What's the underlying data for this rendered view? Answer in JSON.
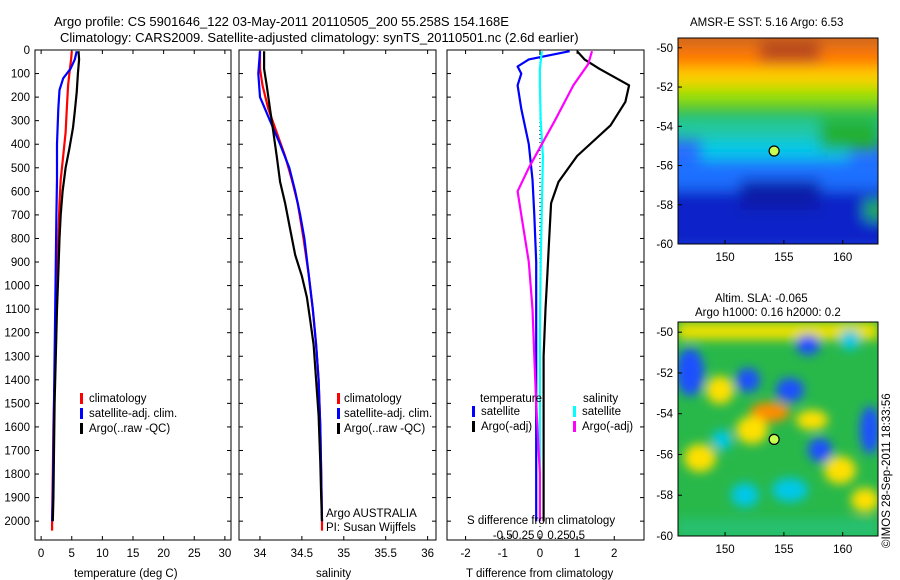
{
  "title_line1": "Argo profile: CS 5901646_122 03-May-2011 20110505_200 55.258S 154.168E",
  "title_line2": "Climatology: CARS2009. Satellite-adjusted climatology: synTS_20110501.nc (2.6d earlier)",
  "credit": "©IMOS 28-Sep-2011 18:33:56",
  "colors": {
    "climatology": "#ff0000",
    "satellite": "#0000ff",
    "argo": "#000000",
    "satellite_salinity": "#00ffff",
    "argo_salinity_diff": "#ff00ff",
    "zero_line": "#000000"
  },
  "chart_data": [
    {
      "type": "line",
      "id": "temperature_profile",
      "xlabel": "temperature (deg C)",
      "xlim": [
        -1,
        31
      ],
      "xticks": [
        0,
        5,
        10,
        15,
        20,
        25,
        30
      ],
      "ylim": [
        2080,
        0
      ],
      "yticks": [
        0,
        100,
        200,
        300,
        400,
        500,
        600,
        700,
        800,
        900,
        1000,
        1100,
        1200,
        1300,
        1400,
        1500,
        1600,
        1700,
        1800,
        1900,
        2000
      ],
      "legend": [
        "climatology",
        "satellite-adj. clim.",
        "Argo(..raw -QC)"
      ],
      "series": [
        {
          "name": "climatology",
          "color": "#ff0000",
          "points": [
            [
              5.0,
              5
            ],
            [
              4.9,
              40
            ],
            [
              4.7,
              80
            ],
            [
              4.4,
              150
            ],
            [
              4.2,
              250
            ],
            [
              4.0,
              350
            ],
            [
              3.6,
              450
            ],
            [
              3.2,
              550
            ],
            [
              3.0,
              650
            ],
            [
              2.8,
              800
            ],
            [
              2.6,
              1000
            ],
            [
              2.4,
              1200
            ],
            [
              2.2,
              1400
            ],
            [
              2.0,
              1600
            ],
            [
              1.9,
              1800
            ],
            [
              1.8,
              2000
            ],
            [
              1.8,
              2040
            ]
          ]
        },
        {
          "name": "satellite-adj. clim.",
          "color": "#0000ff",
          "points": [
            [
              5.8,
              5
            ],
            [
              5.5,
              40
            ],
            [
              4.8,
              80
            ],
            [
              3.6,
              120
            ],
            [
              3.0,
              170
            ],
            [
              2.8,
              250
            ],
            [
              2.6,
              400
            ],
            [
              2.6,
              550
            ],
            [
              2.5,
              700
            ],
            [
              2.4,
              900
            ],
            [
              2.3,
              1100
            ],
            [
              2.2,
              1300
            ],
            [
              2.1,
              1500
            ],
            [
              2.0,
              1700
            ],
            [
              1.9,
              1900
            ],
            [
              1.8,
              2000
            ]
          ]
        },
        {
          "name": "Argo(..raw -QC)",
          "color": "#000000",
          "points": [
            [
              6.1,
              5
            ],
            [
              6.2,
              40
            ],
            [
              6.0,
              100
            ],
            [
              5.8,
              180
            ],
            [
              5.5,
              260
            ],
            [
              5.2,
              330
            ],
            [
              4.6,
              420
            ],
            [
              4.0,
              500
            ],
            [
              3.5,
              600
            ],
            [
              3.2,
              700
            ],
            [
              3.0,
              800
            ],
            [
              2.8,
              950
            ],
            [
              2.6,
              1100
            ],
            [
              2.4,
              1300
            ],
            [
              2.2,
              1500
            ],
            [
              2.1,
              1700
            ],
            [
              2.0,
              1900
            ],
            [
              1.9,
              2000
            ]
          ]
        }
      ]
    },
    {
      "type": "line",
      "id": "salinity_profile",
      "xlabel": "salinity",
      "xlim": [
        33.75,
        36.1
      ],
      "xticks": [
        34,
        34.5,
        35,
        35.5,
        36
      ],
      "ylim": [
        2080,
        0
      ],
      "legend": [
        "climatology",
        "satellite-adj. clim.",
        "Argo(..raw -QC)"
      ],
      "annotations": [
        "Argo AUSTRALIA",
        "PI: Susan Wijffels"
      ],
      "series": [
        {
          "name": "climatology",
          "color": "#ff0000",
          "points": [
            [
              34.0,
              5
            ],
            [
              34.0,
              80
            ],
            [
              34.03,
              150
            ],
            [
              34.1,
              250
            ],
            [
              34.2,
              350
            ],
            [
              34.3,
              450
            ],
            [
              34.38,
              550
            ],
            [
              34.45,
              650
            ],
            [
              34.52,
              800
            ],
            [
              34.58,
              950
            ],
            [
              34.63,
              1100
            ],
            [
              34.67,
              1250
            ],
            [
              34.7,
              1400
            ],
            [
              34.72,
              1600
            ],
            [
              34.73,
              1800
            ],
            [
              34.74,
              2000
            ],
            [
              34.74,
              2040
            ]
          ]
        },
        {
          "name": "satellite-adj. clim.",
          "color": "#0000ff",
          "points": [
            [
              34.0,
              5
            ],
            [
              33.98,
              100
            ],
            [
              34.0,
              200
            ],
            [
              34.12,
              300
            ],
            [
              34.24,
              400
            ],
            [
              34.35,
              500
            ],
            [
              34.42,
              600
            ],
            [
              34.48,
              700
            ],
            [
              34.53,
              800
            ],
            [
              34.58,
              950
            ],
            [
              34.63,
              1100
            ],
            [
              34.67,
              1250
            ],
            [
              34.7,
              1400
            ],
            [
              34.72,
              1600
            ],
            [
              34.73,
              1800
            ],
            [
              34.74,
              2000
            ]
          ]
        },
        {
          "name": "Argo(..raw -QC)",
          "color": "#000000",
          "points": [
            [
              34.05,
              5
            ],
            [
              34.05,
              80
            ],
            [
              34.08,
              150
            ],
            [
              34.12,
              250
            ],
            [
              34.16,
              350
            ],
            [
              34.2,
              450
            ],
            [
              34.24,
              560
            ],
            [
              34.3,
              650
            ],
            [
              34.36,
              760
            ],
            [
              34.42,
              870
            ],
            [
              34.5,
              960
            ],
            [
              34.56,
              1050
            ],
            [
              34.6,
              1150
            ],
            [
              34.64,
              1250
            ],
            [
              34.67,
              1400
            ],
            [
              34.7,
              1550
            ],
            [
              34.72,
              1750
            ],
            [
              34.73,
              1900
            ],
            [
              34.74,
              2000
            ]
          ]
        }
      ]
    },
    {
      "type": "line",
      "id": "difference_profile",
      "xlabel": "T difference from climatology",
      "xlabel_top": "S difference from climatology",
      "xlim": [
        -2.5,
        2.8
      ],
      "xticks": [
        -2,
        -1,
        0,
        1,
        2
      ],
      "top_ticks": [
        "-0.5",
        "-0.25",
        "0",
        "0.25",
        "0.5"
      ],
      "ylim": [
        2080,
        0
      ],
      "legend_left_title": "temperature",
      "legend_right_title": "salinity",
      "legend_left": [
        "satellite",
        "Argo(-adj)"
      ],
      "legend_right": [
        "satellite",
        "Argo(-adj)"
      ],
      "series": [
        {
          "name": "satellite",
          "quantity": "temperature",
          "color": "#0000ff",
          "points": [
            [
              0.8,
              5
            ],
            [
              -0.3,
              40
            ],
            [
              -0.6,
              70
            ],
            [
              -0.5,
              100
            ],
            [
              -0.6,
              150
            ],
            [
              -0.5,
              250
            ],
            [
              -0.3,
              400
            ],
            [
              -0.2,
              550
            ],
            [
              -0.15,
              700
            ],
            [
              -0.1,
              900
            ],
            [
              -0.1,
              1200
            ],
            [
              -0.1,
              1500
            ],
            [
              -0.1,
              1800
            ],
            [
              -0.1,
              2000
            ]
          ]
        },
        {
          "name": "Argo(-adj)",
          "quantity": "temperature",
          "color": "#000000",
          "points": [
            [
              1.0,
              5
            ],
            [
              1.2,
              40
            ],
            [
              1.6,
              80
            ],
            [
              2.4,
              150
            ],
            [
              2.3,
              220
            ],
            [
              1.9,
              320
            ],
            [
              1.0,
              450
            ],
            [
              0.5,
              560
            ],
            [
              0.3,
              650
            ],
            [
              0.25,
              800
            ],
            [
              0.2,
              950
            ],
            [
              0.15,
              1100
            ],
            [
              0.1,
              1300
            ],
            [
              0.1,
              1600
            ],
            [
              0.1,
              2000
            ]
          ]
        },
        {
          "name": "satellite",
          "quantity": "salinity",
          "color": "#00ffff",
          "points": [
            [
              0.05,
              5
            ],
            [
              0.0,
              80
            ],
            [
              0.0,
              150
            ],
            [
              0.02,
              300
            ],
            [
              0.08,
              450
            ],
            [
              0.06,
              600
            ],
            [
              0.02,
              900
            ],
            [
              0.0,
              1200
            ],
            [
              0.0,
              1500
            ],
            [
              0.0,
              2000
            ]
          ]
        },
        {
          "name": "Argo(-adj)",
          "quantity": "salinity",
          "color": "#ff00ff",
          "points": [
            [
              1.4,
              5
            ],
            [
              1.3,
              60
            ],
            [
              0.9,
              150
            ],
            [
              0.4,
              300
            ],
            [
              -0.3,
              500
            ],
            [
              -0.6,
              600
            ],
            [
              -0.5,
              700
            ],
            [
              -0.3,
              900
            ],
            [
              -0.2,
              1100
            ],
            [
              -0.15,
              1300
            ],
            [
              -0.1,
              1500
            ],
            [
              0.0,
              1800
            ],
            [
              0.0,
              2000
            ]
          ]
        }
      ]
    },
    {
      "type": "heatmap",
      "id": "sst_map",
      "title": "AMSR-E SST: 5.16 Argo: 6.53",
      "xlim": [
        146,
        163
      ],
      "ylim": [
        -60,
        -49.5
      ],
      "xticks": [
        150,
        155,
        160
      ],
      "yticks": [
        -50,
        -52,
        -54,
        -56,
        -58,
        -60
      ],
      "markers": [
        {
          "lon": 154.17,
          "lat": -55.26,
          "label": "Argo float"
        }
      ]
    },
    {
      "type": "heatmap",
      "id": "sla_map",
      "title_line1": "Altim. SLA: -0.065",
      "title_line2": "Argo h1000: 0.16 h2000: 0.2",
      "xlim": [
        146,
        163
      ],
      "ylim": [
        -60,
        -49.5
      ],
      "xticks": [
        150,
        155,
        160
      ],
      "yticks": [
        -50,
        -52,
        -54,
        -56,
        -58,
        -60
      ],
      "markers": [
        {
          "lon": 154.17,
          "lat": -55.26,
          "label": "Argo float"
        }
      ]
    }
  ]
}
